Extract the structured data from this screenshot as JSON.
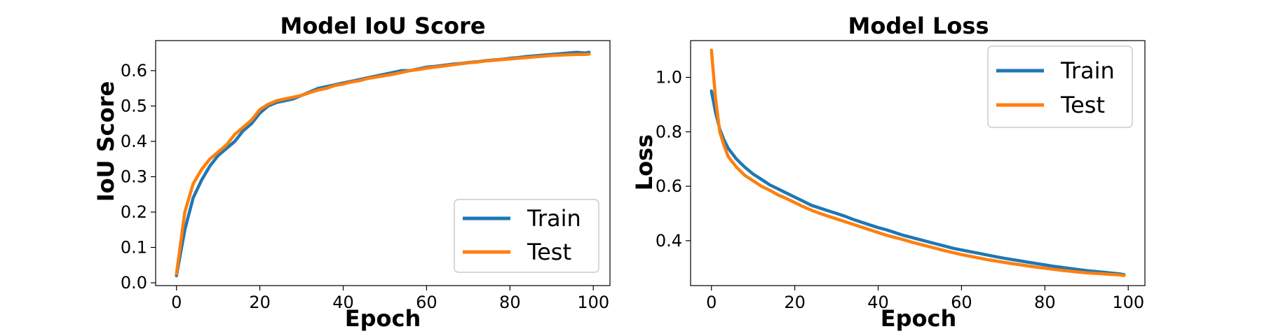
{
  "colors": {
    "train": "#1f77b4",
    "test": "#ff7f0e",
    "axis": "#000000",
    "legend_border": "#cccccc"
  },
  "chart_data": [
    {
      "type": "line",
      "title": "Model IoU Score",
      "xlabel": "Epoch",
      "ylabel": "IoU Score",
      "xlim": [
        -5,
        104
      ],
      "ylim": [
        -0.008,
        0.685
      ],
      "xticks": [
        0,
        20,
        40,
        60,
        80,
        100
      ],
      "yticks": [
        0.0,
        0.1,
        0.2,
        0.3,
        0.4,
        0.5,
        0.6
      ],
      "ytick_labels": [
        "0.0",
        "0.1",
        "0.2",
        "0.3",
        "0.4",
        "0.5",
        "0.6"
      ],
      "legend": "lower-right",
      "grid": false,
      "series": [
        {
          "name": "Train",
          "x": [
            0,
            2,
            4,
            6,
            8,
            10,
            12,
            14,
            16,
            18,
            20,
            22,
            24,
            26,
            28,
            30,
            32,
            34,
            36,
            38,
            40,
            42,
            44,
            46,
            48,
            50,
            52,
            54,
            56,
            58,
            60,
            62,
            64,
            66,
            68,
            70,
            72,
            74,
            76,
            78,
            80,
            82,
            84,
            86,
            88,
            90,
            92,
            94,
            96,
            98,
            99
          ],
          "y": [
            0.02,
            0.15,
            0.24,
            0.29,
            0.33,
            0.36,
            0.38,
            0.4,
            0.43,
            0.45,
            0.48,
            0.5,
            0.51,
            0.515,
            0.52,
            0.53,
            0.54,
            0.55,
            0.555,
            0.56,
            0.565,
            0.57,
            0.575,
            0.58,
            0.585,
            0.59,
            0.595,
            0.6,
            0.6,
            0.605,
            0.61,
            0.612,
            0.615,
            0.618,
            0.62,
            0.623,
            0.625,
            0.628,
            0.63,
            0.632,
            0.635,
            0.637,
            0.64,
            0.642,
            0.644,
            0.646,
            0.648,
            0.65,
            0.652,
            0.65,
            0.652
          ]
        },
        {
          "name": "Test",
          "x": [
            0,
            2,
            4,
            6,
            8,
            10,
            12,
            14,
            16,
            18,
            20,
            22,
            24,
            26,
            28,
            30,
            32,
            34,
            36,
            38,
            40,
            42,
            44,
            46,
            48,
            50,
            52,
            54,
            56,
            58,
            60,
            62,
            64,
            66,
            68,
            70,
            72,
            74,
            76,
            78,
            80,
            82,
            84,
            86,
            88,
            90,
            92,
            94,
            96,
            98,
            99
          ],
          "y": [
            0.025,
            0.2,
            0.28,
            0.32,
            0.35,
            0.37,
            0.39,
            0.42,
            0.44,
            0.46,
            0.49,
            0.505,
            0.515,
            0.52,
            0.525,
            0.53,
            0.538,
            0.545,
            0.55,
            0.558,
            0.562,
            0.568,
            0.572,
            0.578,
            0.582,
            0.586,
            0.59,
            0.595,
            0.6,
            0.603,
            0.607,
            0.61,
            0.613,
            0.616,
            0.619,
            0.622,
            0.624,
            0.627,
            0.629,
            0.631,
            0.633,
            0.635,
            0.637,
            0.639,
            0.641,
            0.643,
            0.644,
            0.645,
            0.646,
            0.646,
            0.647
          ]
        }
      ]
    },
    {
      "type": "line",
      "title": "Model Loss",
      "xlabel": "Epoch",
      "ylabel": "Loss",
      "xlim": [
        -5,
        104
      ],
      "ylim": [
        0.235,
        1.135
      ],
      "xticks": [
        0,
        20,
        40,
        60,
        80,
        100
      ],
      "yticks": [
        0.4,
        0.6,
        0.8,
        1.0
      ],
      "ytick_labels": [
        "0.4",
        "0.6",
        "0.8",
        "1.0"
      ],
      "legend": "upper-right",
      "grid": false,
      "series": [
        {
          "name": "Train",
          "x": [
            0,
            1,
            2,
            3,
            4,
            5,
            6,
            8,
            10,
            12,
            14,
            16,
            18,
            20,
            22,
            24,
            26,
            28,
            30,
            32,
            34,
            36,
            38,
            40,
            42,
            44,
            46,
            48,
            50,
            52,
            54,
            56,
            58,
            60,
            62,
            64,
            66,
            68,
            70,
            72,
            74,
            76,
            78,
            80,
            82,
            84,
            86,
            88,
            90,
            92,
            94,
            96,
            98,
            99
          ],
          "y": [
            0.95,
            0.87,
            0.81,
            0.77,
            0.74,
            0.72,
            0.7,
            0.67,
            0.645,
            0.625,
            0.605,
            0.59,
            0.575,
            0.56,
            0.545,
            0.53,
            0.52,
            0.51,
            0.5,
            0.49,
            0.478,
            0.468,
            0.458,
            0.448,
            0.44,
            0.43,
            0.42,
            0.412,
            0.404,
            0.396,
            0.388,
            0.38,
            0.372,
            0.366,
            0.36,
            0.354,
            0.348,
            0.342,
            0.336,
            0.331,
            0.326,
            0.321,
            0.316,
            0.311,
            0.306,
            0.302,
            0.298,
            0.294,
            0.29,
            0.287,
            0.284,
            0.281,
            0.278,
            0.275
          ]
        },
        {
          "name": "Test",
          "x": [
            0,
            1,
            2,
            3,
            4,
            5,
            6,
            8,
            10,
            12,
            14,
            16,
            18,
            20,
            22,
            24,
            26,
            28,
            30,
            32,
            34,
            36,
            38,
            40,
            42,
            44,
            46,
            48,
            50,
            52,
            54,
            56,
            58,
            60,
            62,
            64,
            66,
            68,
            70,
            72,
            74,
            76,
            78,
            80,
            82,
            84,
            86,
            88,
            90,
            92,
            94,
            96,
            98,
            99
          ],
          "y": [
            1.1,
            0.92,
            0.8,
            0.75,
            0.71,
            0.69,
            0.67,
            0.64,
            0.62,
            0.6,
            0.585,
            0.568,
            0.555,
            0.54,
            0.525,
            0.512,
            0.5,
            0.49,
            0.48,
            0.47,
            0.46,
            0.45,
            0.44,
            0.43,
            0.42,
            0.412,
            0.404,
            0.395,
            0.387,
            0.379,
            0.371,
            0.363,
            0.356,
            0.349,
            0.343,
            0.337,
            0.331,
            0.326,
            0.321,
            0.316,
            0.312,
            0.307,
            0.303,
            0.299,
            0.295,
            0.291,
            0.288,
            0.285,
            0.282,
            0.28,
            0.278,
            0.276,
            0.274,
            0.272
          ]
        }
      ]
    }
  ]
}
